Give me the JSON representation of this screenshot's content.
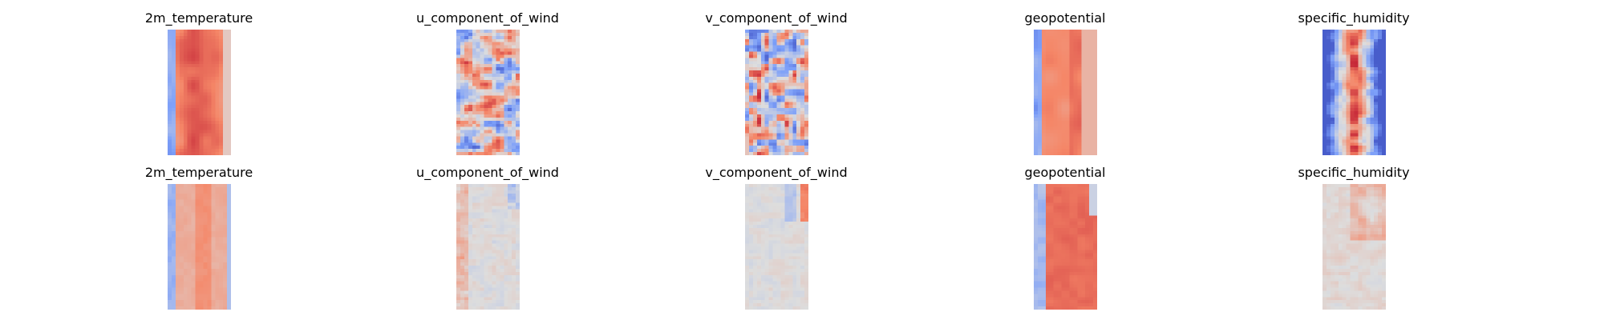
{
  "chart_data": {
    "type": "heatmap",
    "colormap": "coolwarm",
    "axes_visible": false,
    "rows": [
      {
        "panels": [
          {
            "title": "2m_temperature",
            "pattern": "temp_pred"
          },
          {
            "title": "u_component_of_wind",
            "pattern": "u_pred"
          },
          {
            "title": "v_component_of_wind",
            "pattern": "v_pred"
          },
          {
            "title": "geopotential",
            "pattern": "geo_pred"
          },
          {
            "title": "specific_humidity",
            "pattern": "hum_pred"
          }
        ]
      },
      {
        "panels": [
          {
            "title": "2m_temperature",
            "pattern": "temp_diff"
          },
          {
            "title": "u_component_of_wind",
            "pattern": "u_diff"
          },
          {
            "title": "v_component_of_wind",
            "pattern": "v_diff"
          },
          {
            "title": "geopotential",
            "pattern": "geo_diff"
          },
          {
            "title": "specific_humidity",
            "pattern": "hum_diff"
          }
        ]
      }
    ]
  }
}
